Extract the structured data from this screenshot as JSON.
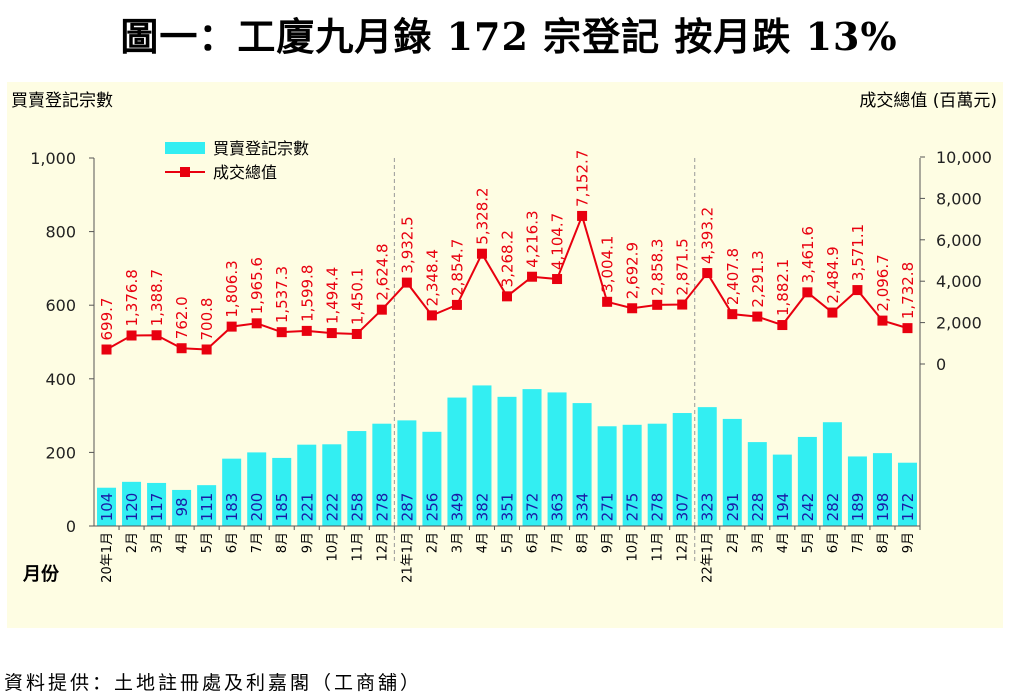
{
  "title": "圖一：工廈九月錄 172 宗登記  按月跌 13%",
  "source": "資料提供：土地註冊處及利嘉閣（工商舖）",
  "colors": {
    "bar": "#33eef2",
    "line": "#e8000f",
    "label_bar": "#1a1aa6",
    "label_line": "#e8000f",
    "panel": "#fefde3"
  },
  "chart_data": {
    "type": "bar+line",
    "left_axis_title": "買賣登記宗數",
    "right_axis_title": "成交總值 (百萬元)",
    "x_axis_title": "月份",
    "left_ylim": [
      0,
      1000
    ],
    "left_ticks": [
      "0",
      "200",
      "400",
      "600",
      "800",
      "1,000"
    ],
    "right_ylim": [
      0,
      10000
    ],
    "right_ticks": [
      "0",
      "2,000",
      "4,000",
      "6,000",
      "8,000",
      "10,000"
    ],
    "legend": [
      "買賣登記宗數",
      "成交總值"
    ],
    "categories": [
      "20年1月",
      "2月",
      "3月",
      "4月",
      "5月",
      "6月",
      "7月",
      "8月",
      "9月",
      "10月",
      "11月",
      "12月",
      "21年1月",
      "2月",
      "3月",
      "4月",
      "5月",
      "6月",
      "7月",
      "8月",
      "9月",
      "10月",
      "11月",
      "12月",
      "22年1月",
      "2月",
      "3月",
      "4月",
      "5月",
      "6月",
      "7月",
      "8月",
      "9月"
    ],
    "series": [
      {
        "name": "買賣登記宗數",
        "type": "bar",
        "values": [
          104,
          120,
          117,
          98,
          111,
          183,
          200,
          185,
          221,
          222,
          258,
          278,
          287,
          256,
          349,
          382,
          351,
          372,
          363,
          334,
          271,
          275,
          278,
          307,
          323,
          291,
          228,
          194,
          242,
          282,
          189,
          198,
          172
        ],
        "labels": [
          "104",
          "120",
          "117",
          "98",
          "111",
          "183",
          "200",
          "185",
          "221",
          "222",
          "258",
          "278",
          "287",
          "256",
          "349",
          "382",
          "351",
          "372",
          "363",
          "334",
          "271",
          "275",
          "278",
          "307",
          "323",
          "291",
          "228",
          "194",
          "242",
          "282",
          "189",
          "198",
          "172"
        ]
      },
      {
        "name": "成交總值",
        "type": "line",
        "values": [
          699.7,
          1376.8,
          1388.7,
          762.0,
          700.8,
          1806.3,
          1965.6,
          1537.3,
          1599.8,
          1494.4,
          1450.1,
          2624.8,
          3932.5,
          2348.4,
          2854.7,
          5328.2,
          3268.2,
          4216.3,
          4104.7,
          7152.7,
          3004.1,
          2692.9,
          2858.3,
          2871.5,
          4393.2,
          2407.8,
          2291.3,
          1882.1,
          3461.6,
          2484.9,
          3571.1,
          2096.7,
          1732.8
        ],
        "labels": [
          "699.7",
          "1,376.8",
          "1,388.7",
          "762.0",
          "700.8",
          "1,806.3",
          "1,965.6",
          "1,537.3",
          "1,599.8",
          "1,494.4",
          "1,450.1",
          "2,624.8",
          "3,932.5",
          "2,348.4",
          "2,854.7",
          "5,328.2",
          "3,268.2",
          "4,216.3",
          "4,104.7",
          "7,152.7",
          "3,004.1",
          "2,692.9",
          "2,858.3",
          "2,871.5",
          "4,393.2",
          "2,407.8",
          "2,291.3",
          "1,882.1",
          "3,461.6",
          "2,484.9",
          "3,571.1",
          "2,096.7",
          "1,732.8"
        ]
      }
    ],
    "year_dividers_after": [
      11,
      23
    ]
  }
}
